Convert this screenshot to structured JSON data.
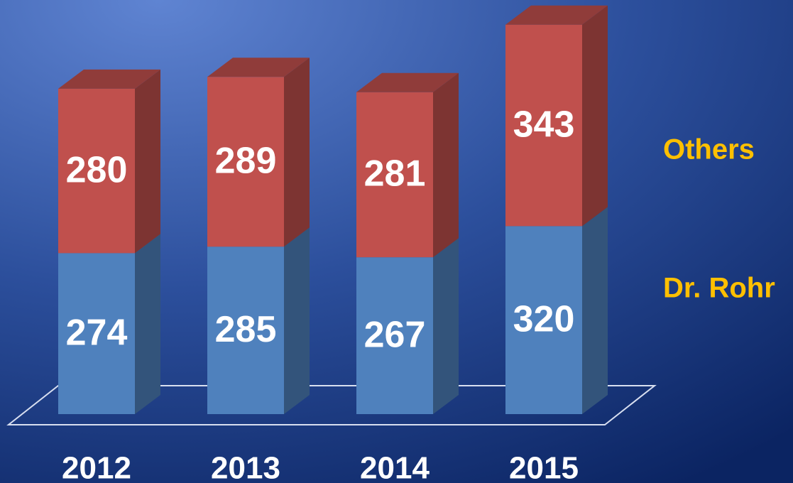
{
  "chart_data": {
    "type": "bar",
    "stacked": true,
    "categories": [
      "2012",
      "2013",
      "2014",
      "2015"
    ],
    "series": [
      {
        "name": "Dr. Rohr",
        "color": "#4f81bd",
        "values": [
          274,
          285,
          267,
          320
        ]
      },
      {
        "name": "Others",
        "color": "#c0504d",
        "values": [
          280,
          289,
          281,
          343
        ]
      }
    ]
  }
}
